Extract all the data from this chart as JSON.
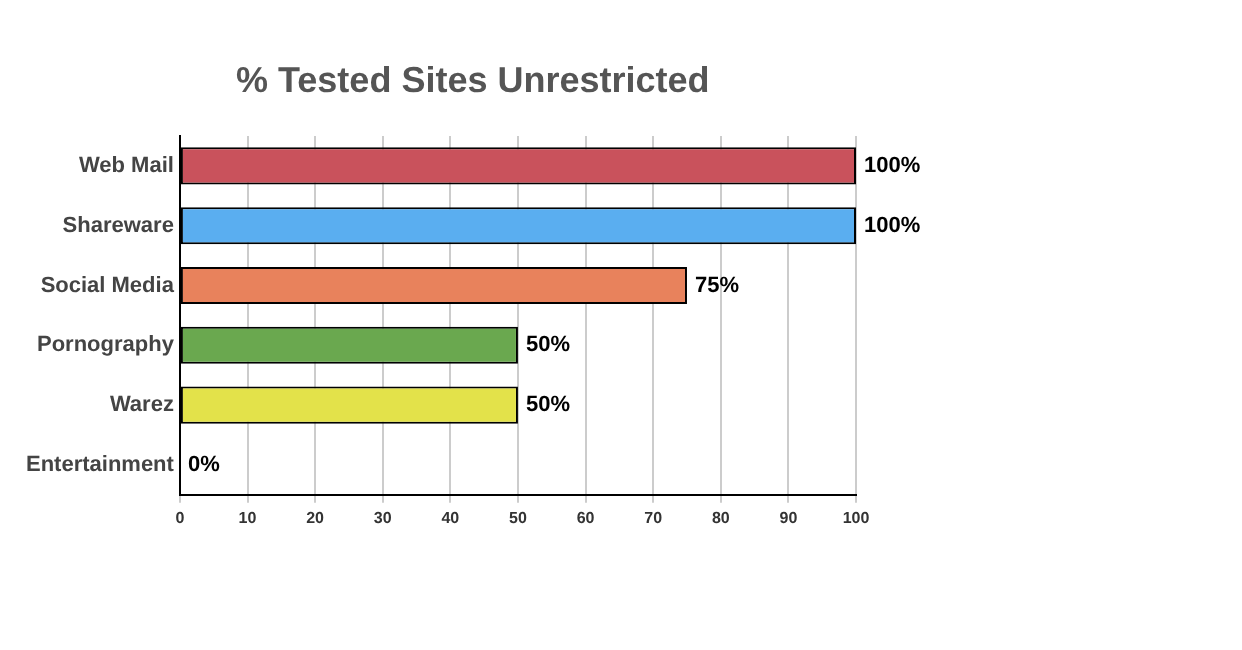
{
  "chart_data": {
    "type": "bar",
    "orientation": "horizontal",
    "title": "% Tested Sites Unrestricted",
    "categories": [
      "Web Mail",
      "Shareware",
      "Social Media",
      "Pornography",
      "Warez",
      "Entertainment"
    ],
    "values": [
      100,
      100,
      75,
      50,
      50,
      0
    ],
    "colors": [
      "#c9525c",
      "#5aaef0",
      "#e8825c",
      "#6aa84f",
      "#e3e24a",
      "#999999"
    ],
    "value_labels": [
      "100%",
      "100%",
      "75%",
      "50%",
      "50%",
      "0%"
    ],
    "xlim": [
      0,
      100
    ],
    "xticks": [
      0,
      10,
      20,
      30,
      40,
      50,
      60,
      70,
      80,
      90,
      100
    ],
    "grid": "x",
    "legend": false
  }
}
